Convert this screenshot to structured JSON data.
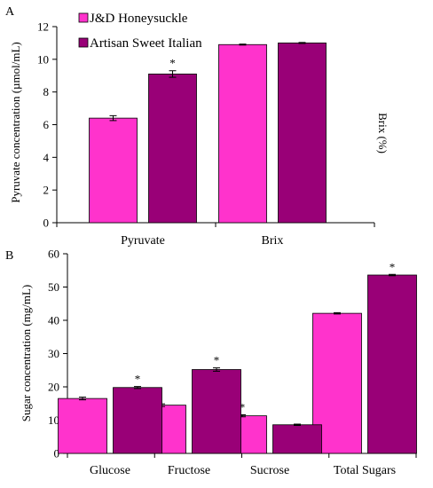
{
  "colors": {
    "series_1": "#ff33cc",
    "series_2": "#990077",
    "axis": "#000000"
  },
  "chart_data": [
    {
      "panel_label": "A",
      "type": "bar",
      "categories": [
        "Pyruvate",
        "Brix"
      ],
      "series": [
        {
          "name": "J&D Honeysuckle",
          "values": [
            6.4,
            10.9
          ],
          "errors": [
            0.15,
            0.03
          ]
        },
        {
          "name": "Artisan Sweet Italian",
          "values": [
            9.1,
            11.0
          ],
          "errors": [
            0.2,
            0.03
          ]
        }
      ],
      "significant": [
        [
          false,
          false
        ],
        [
          true,
          false
        ]
      ],
      "ylabel": "Pyruvate concentration (µmol/mL)",
      "ylabel_right": "Brix (%)",
      "ylim": [
        0,
        12
      ],
      "yticks": [
        "0",
        "2",
        "4",
        "6",
        "8",
        "10",
        "12"
      ],
      "grid": false,
      "legend_position": "top-left"
    },
    {
      "panel_label": "B",
      "type": "bar",
      "categories": [
        "Glucose",
        "Fructose",
        "Sucrose",
        "Total Sugars"
      ],
      "series": [
        {
          "name": "J&D Honeysuckle",
          "values": [
            16.5,
            14.5,
            11.3,
            42.1
          ],
          "errors": [
            0.4,
            0.4,
            0.3,
            0.2
          ]
        },
        {
          "name": "Artisan Sweet Italian",
          "values": [
            19.8,
            25.2,
            8.6,
            53.6
          ],
          "errors": [
            0.3,
            0.5,
            0.2,
            0.2
          ]
        }
      ],
      "significant": [
        [
          false,
          false,
          true,
          false
        ],
        [
          true,
          true,
          false,
          true
        ]
      ],
      "ylabel": "Sugar concentration (mg/mL)",
      "ylim": [
        0,
        60
      ],
      "yticks": [
        "0",
        "10",
        "20",
        "30",
        "40",
        "50",
        "60"
      ],
      "grid": false
    }
  ],
  "annotation": {
    "significance_marker": "*"
  }
}
